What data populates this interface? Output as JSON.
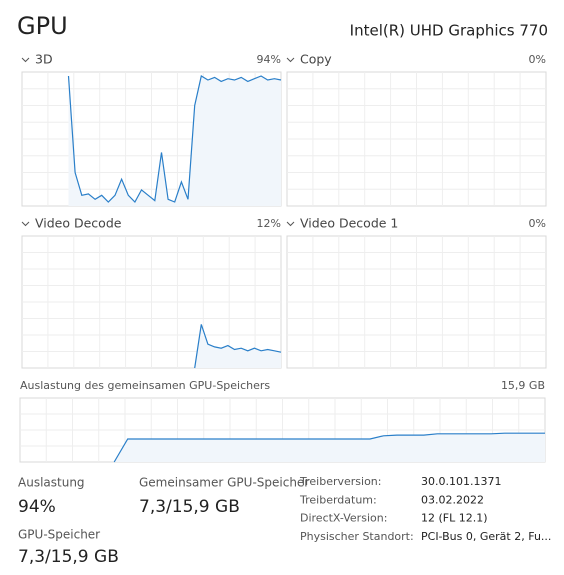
{
  "header": {
    "title": "GPU",
    "device": "Intel(R) UHD Graphics 770"
  },
  "graphs": [
    {
      "label": "3D",
      "value_label": "94%",
      "values": [
        null,
        null,
        null,
        null,
        null,
        null,
        null,
        97,
        25,
        8,
        9,
        5,
        8,
        3,
        8,
        20,
        8,
        3,
        12,
        8,
        4,
        40,
        5,
        3,
        18,
        5,
        75,
        97,
        94,
        96,
        93,
        95,
        94,
        96,
        93,
        95,
        97,
        94,
        95,
        94
      ]
    },
    {
      "label": "Copy",
      "value_label": "0%"
    },
    {
      "label": "Video Decode",
      "value_label": "12%",
      "values": [
        null,
        null,
        null,
        null,
        null,
        null,
        null,
        null,
        null,
        null,
        null,
        null,
        null,
        null,
        null,
        null,
        null,
        null,
        null,
        null,
        null,
        null,
        null,
        null,
        null,
        null,
        0,
        33,
        18,
        16,
        15,
        17,
        14,
        15,
        13,
        15,
        13,
        14,
        13,
        12
      ]
    },
    {
      "label": "Video Decode 1",
      "value_label": "0%"
    }
  ],
  "memory_graph": {
    "label": "Auslastung des gemeinsamen GPU-Speichers",
    "max_label": "15,9 GB",
    "values": [
      null,
      null,
      null,
      null,
      null,
      null,
      null,
      0,
      36,
      36,
      36,
      36,
      36,
      36,
      36,
      36,
      36,
      36,
      36,
      36,
      36,
      36,
      36,
      36,
      36,
      36,
      36,
      41,
      42,
      42,
      42,
      44,
      44,
      44,
      44,
      44,
      45,
      45,
      45,
      45
    ]
  },
  "stats": [
    {
      "label": "Auslastung",
      "value": "94%"
    },
    {
      "label": "Gemeinsamer GPU-Speicher",
      "value": "7,3/15,9 GB"
    },
    {
      "label": "GPU-Speicher",
      "value": "7,3/15,9 GB"
    }
  ],
  "details": [
    {
      "label": "Treiberversion:",
      "value": "30.0.101.1371"
    },
    {
      "label": "Treiberdatum:",
      "value": "03.02.2022"
    },
    {
      "label": "DirectX-Version:",
      "value": "12 (FL 12.1)"
    },
    {
      "label": "Physischer Standort:",
      "value": "PCI-Bus 0, Gerät 2, Fu..."
    }
  ]
}
